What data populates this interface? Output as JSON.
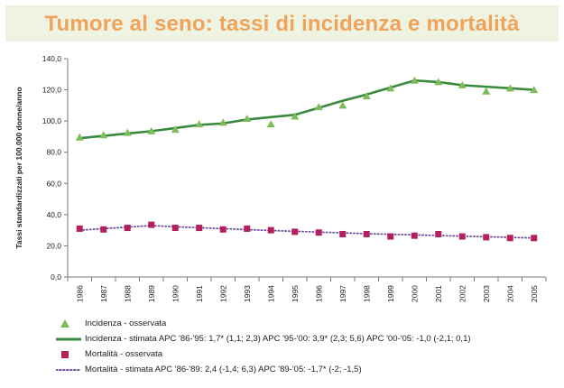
{
  "title": "Tumore al seno: tassi di incidenza e mortalità",
  "colors": {
    "incidence": "#3a8a3e",
    "incidence_marker": "#7cbc5a",
    "mortality": "#b3205a",
    "mortality_line": "#6f4fa0",
    "title": "#f0a35a",
    "title_band": "#eef3e2",
    "axis": "#7a7a7a"
  },
  "chart_data": {
    "type": "line",
    "ylabel": "Tassi standardizzati per 100.000 donne/anno",
    "xlabel": "",
    "ylim": [
      0,
      140
    ],
    "y_ticks": [
      0,
      20,
      40,
      60,
      80,
      100,
      120,
      140
    ],
    "y_tick_labels": [
      "0,0",
      "20,0",
      "40,0",
      "60,0",
      "80,0",
      "100,0",
      "120,0",
      "140,0"
    ],
    "categories": [
      "1986",
      "1987",
      "1988",
      "1989",
      "1990",
      "1991",
      "1992",
      "1993",
      "1994",
      "1995",
      "1996",
      "1997",
      "1998",
      "1999",
      "2000",
      "2001",
      "2002",
      "2003",
      "2004",
      "2005"
    ],
    "grid": false,
    "legend_position": "bottom",
    "series": [
      {
        "name": "Incidenza - osservata",
        "style": "triangle-markers",
        "values": [
          89.5,
          91,
          92.5,
          93.5,
          94.5,
          98,
          99,
          101.5,
          98,
          103,
          109,
          110,
          116,
          121,
          126,
          125,
          123,
          119,
          121,
          120
        ]
      },
      {
        "name": "Incidenza - stimata",
        "style": "solid-line",
        "values": [
          89,
          90.5,
          92,
          93.5,
          95.5,
          97.5,
          98.5,
          101,
          102.5,
          104,
          108.5,
          113,
          117,
          121.5,
          126,
          125,
          123,
          122,
          121,
          120
        ]
      },
      {
        "name": "Mortalità - osservata",
        "style": "square-markers",
        "values": [
          31,
          30.5,
          31.5,
          33.5,
          31.5,
          31.5,
          30.5,
          31,
          30,
          29,
          28.5,
          27.5,
          27.5,
          26,
          26.5,
          27.5,
          26,
          25.5,
          25,
          25
        ]
      },
      {
        "name": "Mortalità - stimata",
        "style": "dotted-line",
        "values": [
          30,
          31,
          32,
          33,
          32.2,
          31.6,
          31,
          30.4,
          29.8,
          29.3,
          28.8,
          28.3,
          27.8,
          27.4,
          27,
          26.6,
          26.2,
          25.8,
          25.4,
          25
        ]
      }
    ]
  },
  "legend": [
    {
      "symbol": "triangle",
      "text": "Incidenza - osservata"
    },
    {
      "symbol": "solid-line",
      "text": "Incidenza - stimata   APC '86-'95: 1,7* (1,1; 2,3)   APC '95-'00: 3,9* (2,3; 5,6)   APC '00-'05: -1,0 (-2,1; 0,1)"
    },
    {
      "symbol": "square",
      "text": "Mortalità - osservata"
    },
    {
      "symbol": "dotted-line",
      "text": "Mortalità - stimata   APC '86-'89: 2,4 (-1,4; 6,3)   APC '89-'05: -1,7* (-2; -1,5)"
    }
  ]
}
